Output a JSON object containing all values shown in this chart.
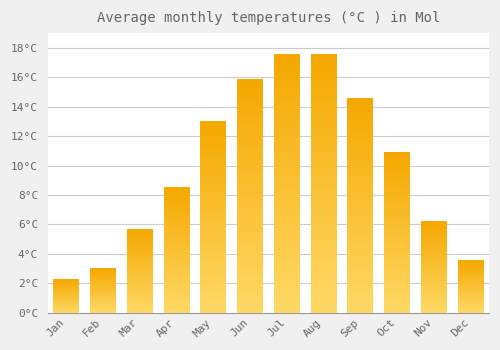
{
  "title": "Average monthly temperatures (°C ) in Mol",
  "months": [
    "Jan",
    "Feb",
    "Mar",
    "Apr",
    "May",
    "Jun",
    "Jul",
    "Aug",
    "Sep",
    "Oct",
    "Nov",
    "Dec"
  ],
  "values": [
    2.3,
    3.0,
    5.7,
    8.5,
    13.0,
    15.9,
    17.6,
    17.6,
    14.6,
    10.9,
    6.2,
    3.6
  ],
  "bar_color_dark": "#F5A800",
  "bar_color_light": "#FFD966",
  "background_color": "#F0F0F0",
  "plot_bg_color": "#FFFFFF",
  "grid_color": "#CCCCCC",
  "text_color": "#666666",
  "ylim": [
    0,
    19
  ],
  "yticks": [
    0,
    2,
    4,
    6,
    8,
    10,
    12,
    14,
    16,
    18
  ],
  "ytick_labels": [
    "0°C",
    "2°C",
    "4°C",
    "6°C",
    "8°C",
    "10°C",
    "12°C",
    "14°C",
    "16°C",
    "18°C"
  ],
  "title_fontsize": 10,
  "tick_fontsize": 8,
  "font_family": "monospace"
}
